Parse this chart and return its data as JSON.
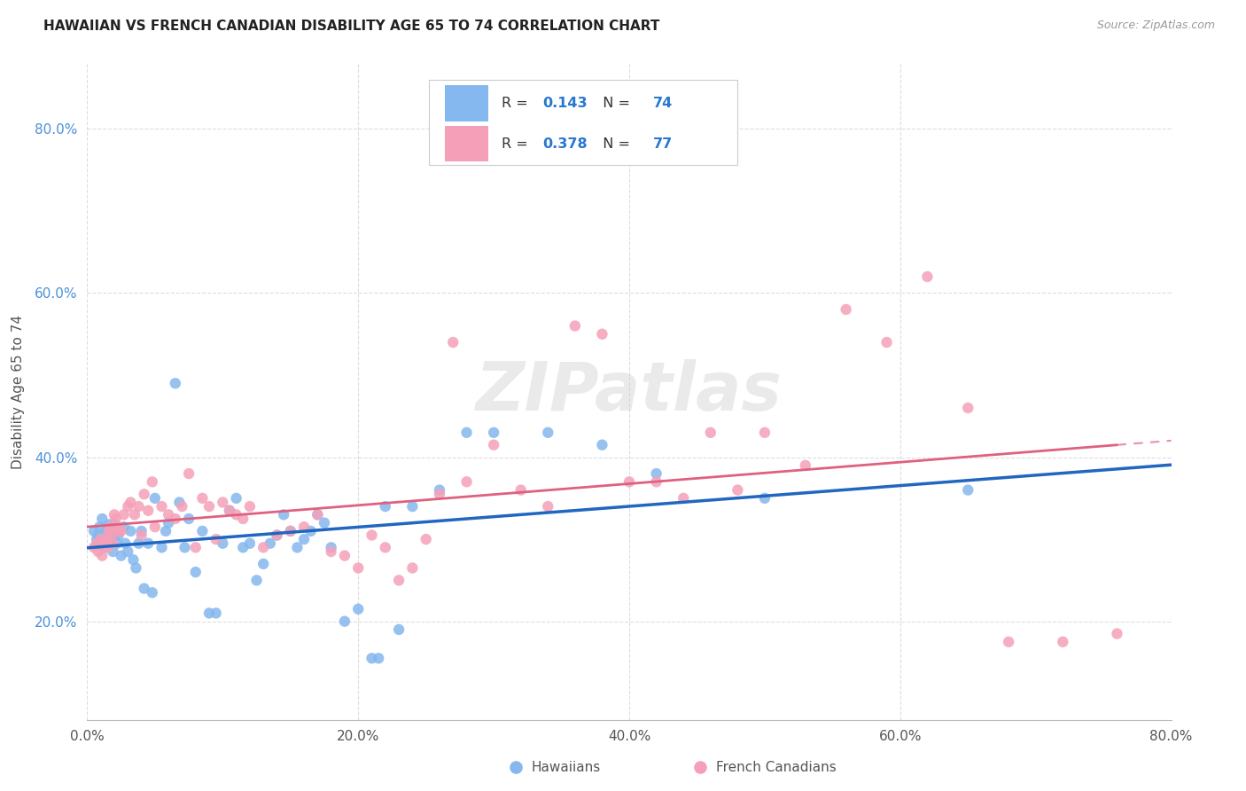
{
  "title": "HAWAIIAN VS FRENCH CANADIAN DISABILITY AGE 65 TO 74 CORRELATION CHART",
  "source": "Source: ZipAtlas.com",
  "ylabel": "Disability Age 65 to 74",
  "xmin": 0.0,
  "xmax": 0.8,
  "ymin": 0.08,
  "ymax": 0.88,
  "xticks": [
    0.0,
    0.2,
    0.4,
    0.6,
    0.8
  ],
  "yticks": [
    0.2,
    0.4,
    0.6,
    0.8
  ],
  "xtick_labels": [
    "0.0%",
    "20.0%",
    "40.0%",
    "60.0%",
    "80.0%"
  ],
  "ytick_labels": [
    "20.0%",
    "40.0%",
    "60.0%",
    "80.0%"
  ],
  "background_color": "#ffffff",
  "grid_color": "#dddddd",
  "hawaiian_color": "#85b8ee",
  "french_color": "#f5a0b8",
  "hawaiian_R": 0.143,
  "hawaiian_N": 74,
  "french_R": 0.378,
  "french_N": 77,
  "legend_label_hawaiian": "Hawaiians",
  "legend_label_french": "French Canadians",
  "watermark": "ZIPatlas",
  "hawaiian_x": [
    0.005,
    0.007,
    0.008,
    0.009,
    0.01,
    0.011,
    0.012,
    0.013,
    0.014,
    0.015,
    0.016,
    0.017,
    0.018,
    0.019,
    0.02,
    0.021,
    0.022,
    0.023,
    0.025,
    0.027,
    0.028,
    0.03,
    0.032,
    0.034,
    0.036,
    0.038,
    0.04,
    0.042,
    0.045,
    0.048,
    0.05,
    0.055,
    0.058,
    0.06,
    0.065,
    0.068,
    0.072,
    0.075,
    0.08,
    0.085,
    0.09,
    0.095,
    0.1,
    0.105,
    0.11,
    0.115,
    0.12,
    0.125,
    0.13,
    0.135,
    0.14,
    0.145,
    0.15,
    0.155,
    0.16,
    0.165,
    0.17,
    0.175,
    0.18,
    0.19,
    0.2,
    0.21,
    0.215,
    0.22,
    0.23,
    0.24,
    0.26,
    0.28,
    0.3,
    0.34,
    0.38,
    0.42,
    0.5,
    0.65
  ],
  "hawaiian_y": [
    0.31,
    0.3,
    0.305,
    0.315,
    0.295,
    0.325,
    0.29,
    0.308,
    0.298,
    0.312,
    0.318,
    0.295,
    0.302,
    0.285,
    0.318,
    0.308,
    0.295,
    0.305,
    0.28,
    0.315,
    0.295,
    0.285,
    0.31,
    0.275,
    0.265,
    0.295,
    0.31,
    0.24,
    0.295,
    0.235,
    0.35,
    0.29,
    0.31,
    0.32,
    0.49,
    0.345,
    0.29,
    0.325,
    0.26,
    0.31,
    0.21,
    0.21,
    0.295,
    0.335,
    0.35,
    0.29,
    0.295,
    0.25,
    0.27,
    0.295,
    0.305,
    0.33,
    0.31,
    0.29,
    0.3,
    0.31,
    0.33,
    0.32,
    0.29,
    0.2,
    0.215,
    0.155,
    0.155,
    0.34,
    0.19,
    0.34,
    0.36,
    0.43,
    0.43,
    0.43,
    0.415,
    0.38,
    0.35,
    0.36
  ],
  "french_x": [
    0.005,
    0.007,
    0.008,
    0.01,
    0.011,
    0.012,
    0.013,
    0.014,
    0.015,
    0.016,
    0.017,
    0.018,
    0.019,
    0.02,
    0.021,
    0.022,
    0.023,
    0.025,
    0.027,
    0.03,
    0.032,
    0.035,
    0.038,
    0.04,
    0.042,
    0.045,
    0.048,
    0.05,
    0.055,
    0.06,
    0.065,
    0.07,
    0.075,
    0.08,
    0.085,
    0.09,
    0.095,
    0.1,
    0.105,
    0.11,
    0.115,
    0.12,
    0.13,
    0.14,
    0.15,
    0.16,
    0.17,
    0.18,
    0.19,
    0.2,
    0.21,
    0.22,
    0.23,
    0.24,
    0.25,
    0.26,
    0.27,
    0.28,
    0.3,
    0.32,
    0.34,
    0.36,
    0.38,
    0.4,
    0.42,
    0.44,
    0.46,
    0.48,
    0.5,
    0.53,
    0.56,
    0.59,
    0.62,
    0.65,
    0.68,
    0.72,
    0.76
  ],
  "french_y": [
    0.29,
    0.295,
    0.285,
    0.3,
    0.28,
    0.295,
    0.295,
    0.3,
    0.29,
    0.31,
    0.315,
    0.305,
    0.295,
    0.33,
    0.325,
    0.315,
    0.31,
    0.31,
    0.33,
    0.34,
    0.345,
    0.33,
    0.34,
    0.305,
    0.355,
    0.335,
    0.37,
    0.315,
    0.34,
    0.33,
    0.325,
    0.34,
    0.38,
    0.29,
    0.35,
    0.34,
    0.3,
    0.345,
    0.335,
    0.33,
    0.325,
    0.34,
    0.29,
    0.305,
    0.31,
    0.315,
    0.33,
    0.285,
    0.28,
    0.265,
    0.305,
    0.29,
    0.25,
    0.265,
    0.3,
    0.355,
    0.54,
    0.37,
    0.415,
    0.36,
    0.34,
    0.56,
    0.55,
    0.37,
    0.37,
    0.35,
    0.43,
    0.36,
    0.43,
    0.39,
    0.58,
    0.54,
    0.62,
    0.46,
    0.175,
    0.175,
    0.185
  ]
}
